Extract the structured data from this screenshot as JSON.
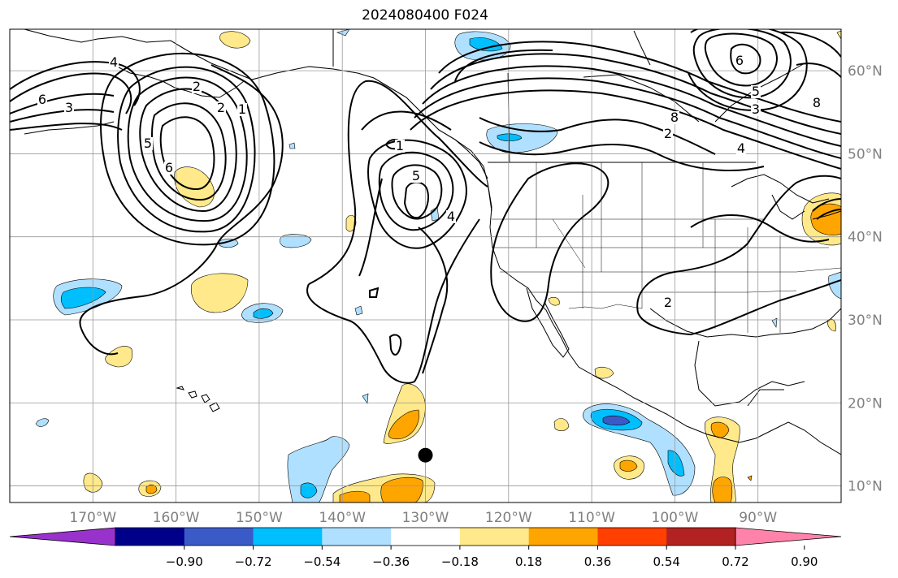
{
  "title": "2024080400 F024",
  "map": {
    "projection": "plate-carree",
    "extent": {
      "lon_min": -180,
      "lon_max": -80,
      "lat_min": 8,
      "lat_max": 65
    },
    "grid": true,
    "lon_ticks": [
      {
        "lon": -170,
        "label": "170°W"
      },
      {
        "lon": -160,
        "label": "160°W"
      },
      {
        "lon": -150,
        "label": "150°W"
      },
      {
        "lon": -140,
        "label": "140°W"
      },
      {
        "lon": -130,
        "label": "130°W"
      },
      {
        "lon": -120,
        "label": "120°W"
      },
      {
        "lon": -110,
        "label": "110°W"
      },
      {
        "lon": -100,
        "label": "100°W"
      },
      {
        "lon": -90,
        "label": "90°W"
      }
    ],
    "lat_ticks": [
      {
        "lat": 10,
        "label": "10°N"
      },
      {
        "lat": 20,
        "label": "20°N"
      },
      {
        "lat": 30,
        "label": "30°N"
      },
      {
        "lat": 40,
        "label": "40°N"
      },
      {
        "lat": 50,
        "label": "50°N"
      },
      {
        "lat": 60,
        "label": "60°N"
      }
    ],
    "marker": {
      "lon": -130,
      "lat": 13.7,
      "color": "#000000"
    }
  },
  "colorbar": {
    "colors": [
      "#9932cc",
      "#00008b",
      "#3a5bc7",
      "#00bfff",
      "#b0e0ff",
      "#ffffff",
      "#ffe98a",
      "#ffa500",
      "#ff4000",
      "#b22222",
      "#ff82ab"
    ],
    "labels": [
      "−0.90",
      "−0.72",
      "−0.54",
      "−0.36",
      "−0.18",
      "0.18",
      "0.36",
      "0.54",
      "0.72",
      "0.90"
    ],
    "extend": "both"
  },
  "contour_labels": [
    "6",
    "3",
    "4",
    "5",
    "6",
    "2",
    "1",
    "1",
    "5",
    "4",
    "2",
    "2",
    "8",
    "4",
    "2",
    "5",
    "6",
    "8",
    "3"
  ]
}
